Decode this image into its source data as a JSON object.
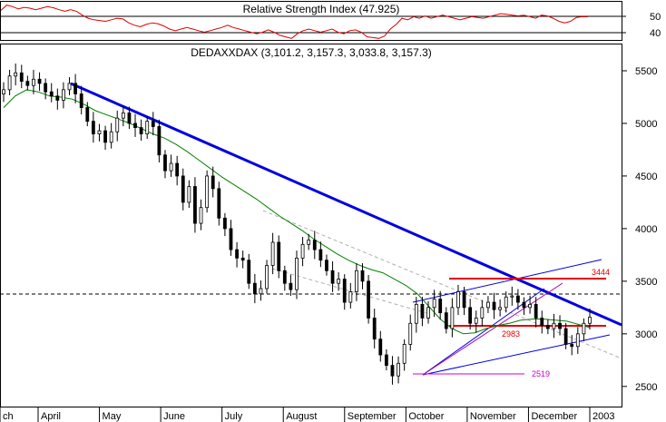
{
  "chart_data": [
    {
      "type": "line",
      "title": "Relative Strength Index (47.925)",
      "ylim": [
        33,
        57
      ],
      "yticks": [
        50,
        40
      ],
      "reference_levels": [
        50,
        40
      ],
      "series": [
        {
          "color": "#e00000",
          "values": [
            52,
            55.5,
            54.5,
            53,
            54,
            53.5,
            52.5,
            53.5,
            54.5,
            53.8,
            52.5,
            51.5,
            52.5,
            51.5,
            49,
            47,
            46,
            45.5,
            45,
            46,
            47,
            46.5,
            44,
            42.5,
            41.5,
            43,
            44,
            43.5,
            42,
            40,
            39,
            40,
            41,
            40,
            39,
            38,
            39,
            40,
            41,
            42.5,
            41,
            40,
            39,
            38,
            37,
            38,
            39.5,
            38,
            36,
            35,
            34,
            37,
            39,
            40,
            39,
            38,
            39,
            40,
            38,
            37,
            39,
            39.5,
            38,
            35,
            34.5,
            34,
            35.5,
            40,
            43,
            47,
            46,
            48,
            47,
            48.5,
            47,
            48,
            49,
            48,
            47,
            46,
            47,
            48,
            47.5,
            47,
            48,
            49,
            50,
            49.5,
            49,
            48.5,
            49,
            48,
            47,
            49,
            48.5,
            47,
            45,
            44,
            45,
            47.5,
            48,
            47.925
          ]
        }
      ]
    },
    {
      "type": "candlestick",
      "title": "DEDAXXDAX (3,101.2, 3,157.3, 3,033.8, 3,157.3)",
      "x": {
        "categories": [
          "ch",
          "April",
          "May",
          "June",
          "July",
          "August",
          "September",
          "October",
          "November",
          "December",
          "2003"
        ]
      },
      "ylim": [
        2300,
        5750
      ],
      "yticks": [
        2500,
        3000,
        3500,
        4000,
        4500,
        5000,
        5500
      ],
      "series": [
        {
          "name": "price",
          "values": [
            5320,
            5450,
            5480,
            5400,
            5360,
            5420,
            5380,
            5300,
            5260,
            5220,
            5320,
            5380,
            5280,
            5150,
            5020,
            4900,
            4930,
            4820,
            4920,
            5050,
            5100,
            5000,
            4960,
            4900,
            5020,
            4970,
            4700,
            4550,
            4620,
            4500,
            4250,
            4400,
            4050,
            4200,
            4500,
            4380,
            4100,
            4000,
            3800,
            3720,
            3700,
            3480,
            3380,
            3430,
            3650,
            3870,
            3600,
            3480,
            3420,
            3720,
            3850,
            3890,
            3800,
            3700,
            3600,
            3480,
            3520,
            3300,
            3400,
            3600,
            3500,
            3150,
            2950,
            2800,
            2700,
            2600,
            2720,
            2900,
            3100,
            3280,
            3150,
            3250,
            3330,
            3200,
            3050,
            3250,
            3400,
            3250,
            3100,
            3150,
            3250,
            3300,
            3230,
            3250,
            3350,
            3360,
            3300,
            3250,
            3280,
            3150,
            3080,
            3050,
            3100,
            3050,
            2900,
            2880,
            3000,
            3100,
            3157.3
          ],
          "color": "#000000"
        },
        {
          "name": "moving average",
          "values": [
            5150,
            5260,
            5320,
            5300,
            5260,
            5250,
            5230,
            5180,
            5120,
            5080,
            5040,
            5000,
            4950,
            4900,
            4860,
            4800,
            4730,
            4650,
            4570,
            4490,
            4420,
            4350,
            4280,
            4200,
            4120,
            4050,
            3980,
            3900,
            3830,
            3760,
            3700,
            3650,
            3610,
            3580,
            3520,
            3460,
            3380,
            3260,
            3140,
            3050,
            3000,
            3010,
            3050,
            3080,
            3100,
            3130,
            3140,
            3140,
            3130,
            3120,
            3090,
            3060
          ],
          "color": "#008000"
        }
      ],
      "annotations": [
        {
          "text": "3444",
          "color": "#e00000"
        },
        {
          "text": "2983",
          "color": "#e00000"
        },
        {
          "text": "2519",
          "color": "#cc00cc"
        }
      ]
    }
  ]
}
